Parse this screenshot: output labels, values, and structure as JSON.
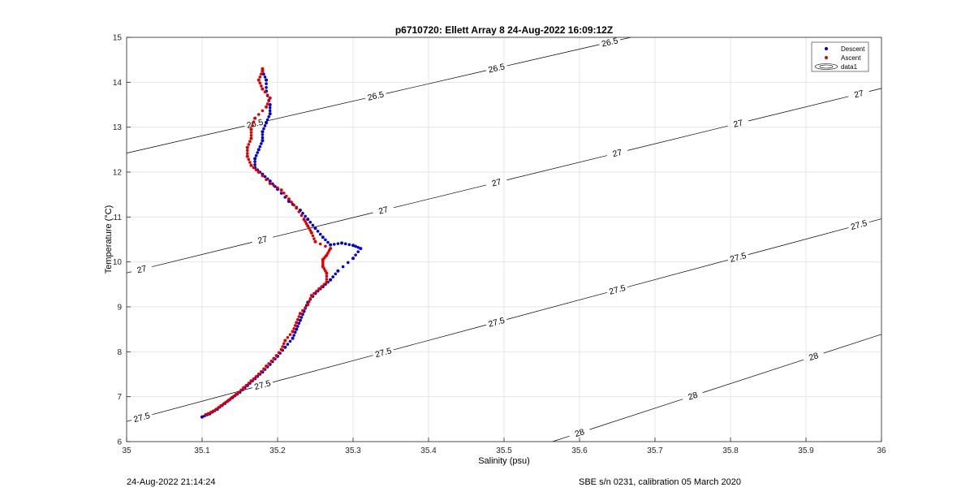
{
  "footer": {
    "left": "24-Aug-2022 21:14:24",
    "right": "SBE s/n 0231, calibration 05 March 2020"
  },
  "colors": {
    "descent": "#0000cc",
    "ascent": "#dd0000",
    "contour": "#000000",
    "grid": "#e6e6e6"
  },
  "chart_data": {
    "type": "scatter",
    "title": "p6710720: Ellett Array 8 24-Aug-2022 16:09:12Z",
    "xlabel": "Salinity (psu)",
    "ylabel": "Temperature (°C)",
    "xlim": [
      35,
      36
    ],
    "ylim": [
      6,
      15
    ],
    "xticks": [
      "35",
      "35.1",
      "35.2",
      "35.3",
      "35.4",
      "35.5",
      "35.6",
      "35.7",
      "35.8",
      "35.9",
      "36"
    ],
    "yticks": [
      "6",
      "7",
      "8",
      "9",
      "10",
      "11",
      "12",
      "13",
      "14",
      "15"
    ],
    "grid": true,
    "legend": {
      "position": "top-right",
      "entries": [
        "Descent",
        "Ascent",
        "data1"
      ]
    },
    "series": [
      {
        "name": "Descent",
        "points": [
          [
            35.1,
            6.55
          ],
          [
            35.11,
            6.62
          ],
          [
            35.12,
            6.72
          ],
          [
            35.13,
            6.85
          ],
          [
            35.14,
            6.98
          ],
          [
            35.15,
            7.1
          ],
          [
            35.16,
            7.25
          ],
          [
            35.17,
            7.4
          ],
          [
            35.18,
            7.55
          ],
          [
            35.19,
            7.72
          ],
          [
            35.2,
            7.9
          ],
          [
            35.21,
            8.1
          ],
          [
            35.22,
            8.3
          ],
          [
            35.225,
            8.5
          ],
          [
            35.23,
            8.7
          ],
          [
            35.235,
            8.9
          ],
          [
            35.24,
            9.1
          ],
          [
            35.25,
            9.3
          ],
          [
            35.26,
            9.45
          ],
          [
            35.27,
            9.6
          ],
          [
            35.28,
            9.8
          ],
          [
            35.3,
            10.08
          ],
          [
            35.31,
            10.3
          ],
          [
            35.3,
            10.37
          ],
          [
            35.285,
            10.42
          ],
          [
            35.27,
            10.38
          ],
          [
            35.26,
            10.55
          ],
          [
            35.25,
            10.75
          ],
          [
            35.24,
            10.95
          ],
          [
            35.23,
            11.15
          ],
          [
            35.215,
            11.35
          ],
          [
            35.2,
            11.62
          ],
          [
            35.19,
            11.8
          ],
          [
            35.18,
            11.95
          ],
          [
            35.17,
            12.1
          ],
          [
            35.17,
            12.3
          ],
          [
            35.175,
            12.5
          ],
          [
            35.18,
            12.7
          ],
          [
            35.18,
            12.9
          ],
          [
            35.185,
            13.1
          ],
          [
            35.19,
            13.3
          ],
          [
            35.19,
            13.5
          ],
          [
            35.185,
            13.8
          ],
          [
            35.185,
            14.05
          ],
          [
            35.18,
            14.25
          ]
        ]
      },
      {
        "name": "Ascent",
        "points": [
          [
            35.105,
            6.6
          ],
          [
            35.115,
            6.68
          ],
          [
            35.125,
            6.8
          ],
          [
            35.135,
            6.92
          ],
          [
            35.145,
            7.05
          ],
          [
            35.155,
            7.2
          ],
          [
            35.165,
            7.35
          ],
          [
            35.175,
            7.5
          ],
          [
            35.185,
            7.68
          ],
          [
            35.195,
            7.85
          ],
          [
            35.205,
            8.05
          ],
          [
            35.21,
            8.25
          ],
          [
            35.22,
            8.45
          ],
          [
            35.225,
            8.65
          ],
          [
            35.23,
            8.85
          ],
          [
            35.24,
            9.05
          ],
          [
            35.245,
            9.25
          ],
          [
            35.255,
            9.4
          ],
          [
            35.265,
            9.55
          ],
          [
            35.265,
            9.75
          ],
          [
            35.26,
            9.9
          ],
          [
            35.26,
            10.05
          ],
          [
            35.265,
            10.15
          ],
          [
            35.27,
            10.3
          ],
          [
            35.25,
            10.45
          ],
          [
            35.245,
            10.65
          ],
          [
            35.24,
            10.8
          ],
          [
            35.235,
            10.95
          ],
          [
            35.225,
            11.2
          ],
          [
            35.215,
            11.4
          ],
          [
            35.205,
            11.6
          ],
          [
            35.19,
            11.75
          ],
          [
            35.175,
            12.0
          ],
          [
            35.165,
            12.15
          ],
          [
            35.16,
            12.35
          ],
          [
            35.16,
            12.55
          ],
          [
            35.165,
            12.75
          ],
          [
            35.165,
            12.95
          ],
          [
            35.17,
            13.2
          ],
          [
            35.185,
            13.45
          ],
          [
            35.19,
            13.65
          ],
          [
            35.18,
            13.85
          ],
          [
            35.175,
            14.05
          ],
          [
            35.18,
            14.25
          ],
          [
            35.18,
            14.3
          ]
        ]
      }
    ],
    "contours": [
      {
        "level": "26.5",
        "labels": [
          [
            35.17,
            13.08
          ],
          [
            35.33,
            13.7
          ],
          [
            35.49,
            14.3
          ],
          [
            35.64,
            14.9
          ]
        ]
      },
      {
        "level": "27",
        "labels": [
          [
            35.02,
            9.8
          ],
          [
            35.18,
            10.5
          ],
          [
            35.34,
            11.15
          ],
          [
            35.49,
            11.82
          ],
          [
            35.65,
            12.45
          ],
          [
            35.81,
            13.08
          ],
          [
            35.97,
            13.7
          ]
        ]
      },
      {
        "level": "27.5",
        "labels": [
          [
            35.02,
            6.5
          ],
          [
            35.18,
            7.25
          ],
          [
            35.34,
            8.0
          ],
          [
            35.49,
            8.72
          ],
          [
            35.65,
            9.4
          ],
          [
            35.81,
            10.1
          ],
          [
            35.97,
            10.78
          ]
        ]
      },
      {
        "level": "28",
        "labels": [
          [
            35.6,
            6.18
          ],
          [
            35.75,
            7.05
          ],
          [
            35.91,
            7.88
          ]
        ]
      }
    ]
  }
}
